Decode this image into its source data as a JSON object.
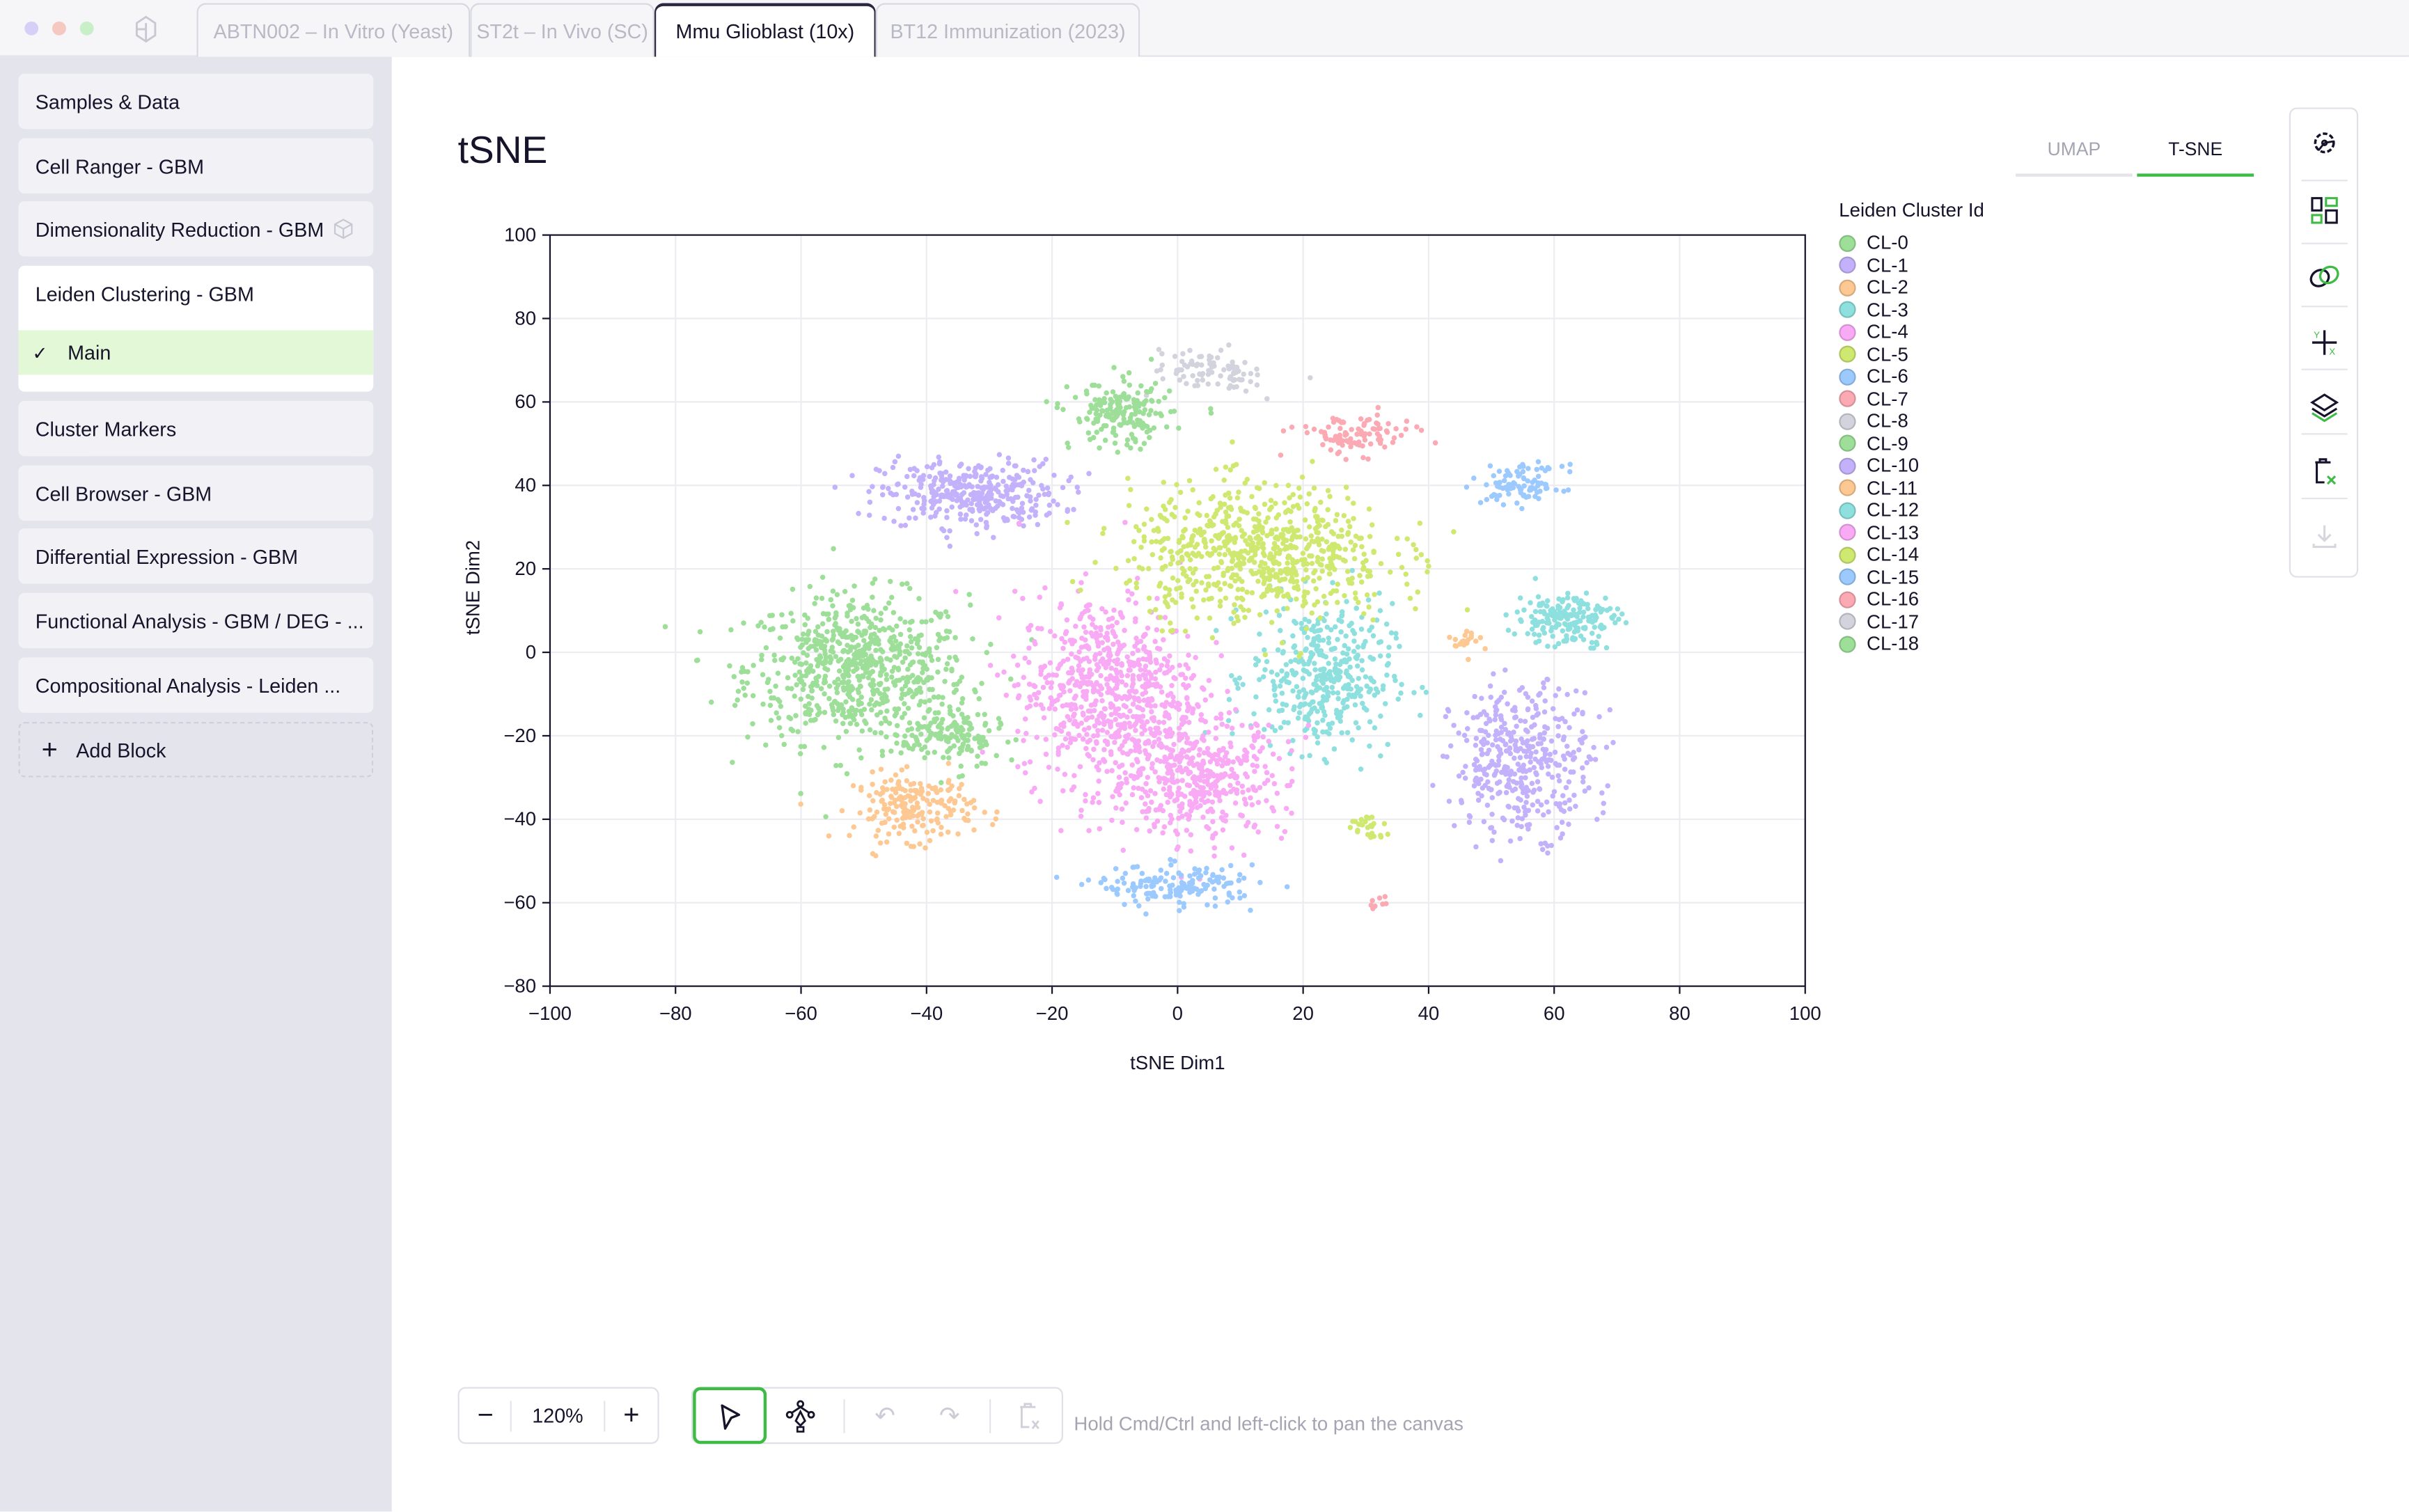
{
  "window": {
    "traffic_lights": [
      "#d6d0f8",
      "#f5c8c0",
      "#c8efc8"
    ]
  },
  "tabs": [
    {
      "label": "ABTN002 – In Vitro (Yeast)",
      "active": false
    },
    {
      "label": "ST2t – In Vivo (SC)",
      "active": false
    },
    {
      "label": "Mmu Glioblast (10x)",
      "active": true
    },
    {
      "label": "BT12 Immunization (2023)",
      "active": false
    }
  ],
  "sidebar": {
    "items": [
      {
        "label": "Samples & Data"
      },
      {
        "label": "Cell Ranger - GBM"
      },
      {
        "label": "Dimensionality Reduction - GBM"
      },
      {
        "label": "Leiden Clustering - GBM"
      },
      {
        "label": "Cluster Markers"
      },
      {
        "label": "Cell Browser - GBM"
      },
      {
        "label": "Differential Expression - GBM"
      },
      {
        "label": "Functional Analysis - GBM / DEG - ..."
      },
      {
        "label": "Compositional Analysis - Leiden ..."
      }
    ],
    "sub_item": {
      "label": "Main",
      "selected": true
    },
    "add_block": "Add Block"
  },
  "main": {
    "title": "tSNE",
    "view_tabs": [
      {
        "label": "UMAP",
        "active": false
      },
      {
        "label": "T-SNE",
        "active": true
      }
    ],
    "accent": "#3dbb44"
  },
  "chart_data": {
    "type": "scatter",
    "xlabel": "tSNE Dim1",
    "ylabel": "tSNE Dim2",
    "xlim": [
      -100,
      100
    ],
    "ylim": [
      -80,
      100
    ],
    "xticks": [
      "−100",
      "−80",
      "−60",
      "−40",
      "−20",
      "0",
      "20",
      "40",
      "60",
      "80",
      "100"
    ],
    "yticks": [
      "100",
      "80",
      "60",
      "40",
      "20",
      "0",
      "−20",
      "−40",
      "−60",
      "−80"
    ],
    "grid": true,
    "legend": {
      "title": "Leiden Cluster Id",
      "placement": "right"
    },
    "clusters": [
      {
        "name": "CL-0",
        "color": "#9ddf98",
        "center": [
          -51,
          -4
        ],
        "spread": [
          11,
          11
        ],
        "n": 700
      },
      {
        "name": "CL-1",
        "color": "#c3b2fb",
        "center": [
          -33,
          38
        ],
        "spread": [
          9,
          5
        ],
        "n": 350
      },
      {
        "name": "CL-2",
        "color": "#fdc892",
        "center": [
          -42,
          -37
        ],
        "spread": [
          6,
          5
        ],
        "n": 200
      },
      {
        "name": "CL-3",
        "color": "#8ee0df",
        "center": [
          23,
          -6
        ],
        "spread": [
          7,
          11
        ],
        "n": 400
      },
      {
        "name": "CL-4",
        "color": "#f9aaf5",
        "center": [
          -11,
          -9
        ],
        "spread": [
          9,
          14
        ],
        "n": 700
      },
      {
        "name": "CL-5",
        "color": "#cfe870",
        "center": [
          13,
          24
        ],
        "spread": [
          13,
          10
        ],
        "n": 700
      },
      {
        "name": "CL-6",
        "color": "#9ccaff",
        "center": [
          55,
          40
        ],
        "spread": [
          4,
          3
        ],
        "n": 90
      },
      {
        "name": "CL-7",
        "color": "#fbaab3",
        "center": [
          28,
          52
        ],
        "spread": [
          6,
          3
        ],
        "n": 100
      },
      {
        "name": "CL-8",
        "color": "#d2d3dc",
        "center": [
          4,
          68
        ],
        "spread": [
          5,
          3
        ],
        "n": 70
      },
      {
        "name": "CL-9",
        "color": "#9ddf98",
        "center": [
          -36,
          -20
        ],
        "spread": [
          5,
          5
        ],
        "n": 150
      },
      {
        "name": "CL-10",
        "color": "#c3b2fb",
        "center": [
          55,
          -26
        ],
        "spread": [
          7,
          11
        ],
        "n": 400
      },
      {
        "name": "CL-11",
        "color": "#fdc892",
        "center": [
          46,
          3
        ],
        "spread": [
          2,
          2
        ],
        "n": 20
      },
      {
        "name": "CL-12",
        "color": "#8ee0df",
        "center": [
          62,
          8
        ],
        "spread": [
          5,
          4
        ],
        "n": 180
      },
      {
        "name": "CL-13",
        "color": "#f9aaf5",
        "center": [
          3,
          -30
        ],
        "spread": [
          9,
          9
        ],
        "n": 450
      },
      {
        "name": "CL-14",
        "color": "#cfe870",
        "center": [
          30,
          -42
        ],
        "spread": [
          2,
          2
        ],
        "n": 25
      },
      {
        "name": "CL-15",
        "color": "#9ccaff",
        "center": [
          0,
          -56
        ],
        "spread": [
          8,
          3
        ],
        "n": 160
      },
      {
        "name": "CL-16",
        "color": "#fbaab3",
        "center": [
          32,
          -60
        ],
        "spread": [
          1,
          1
        ],
        "n": 8
      },
      {
        "name": "CL-17",
        "color": "#d2d3dc",
        "center": [
          10,
          65
        ],
        "spread": [
          2,
          2
        ],
        "n": 20
      },
      {
        "name": "CL-18",
        "color": "#9ddf98",
        "center": [
          -9,
          57
        ],
        "spread": [
          5,
          5
        ],
        "n": 180
      }
    ]
  },
  "bottom_toolbar": {
    "zoom": "120%",
    "hint": "Hold Cmd/Ctrl and left-click to pan the canvas"
  }
}
